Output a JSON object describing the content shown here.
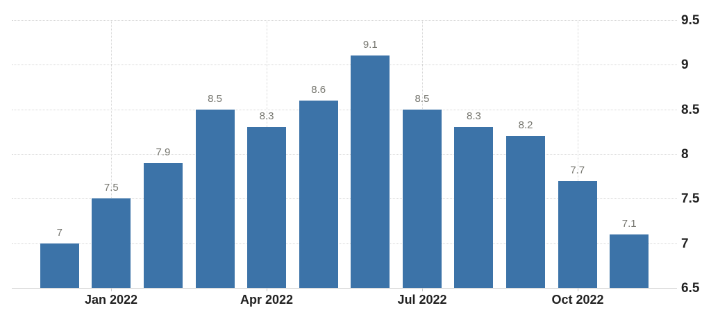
{
  "chart_data": {
    "type": "bar",
    "title": "",
    "xlabel": "",
    "ylabel": "",
    "values": [
      7,
      7.5,
      7.9,
      8.5,
      8.3,
      8.6,
      9.1,
      8.5,
      8.3,
      8.2,
      7.7,
      7.1
    ],
    "value_labels": [
      "7",
      "7.5",
      "7.9",
      "8.5",
      "8.3",
      "8.6",
      "9.1",
      "8.5",
      "8.3",
      "8.2",
      "7.7",
      "7.1"
    ],
    "x_ticks": [
      {
        "label": "Jan 2022",
        "bar_index": 1
      },
      {
        "label": "Apr 2022",
        "bar_index": 4
      },
      {
        "label": "Jul 2022",
        "bar_index": 7
      },
      {
        "label": "Oct 2022",
        "bar_index": 10
      }
    ],
    "y_ticks": [
      {
        "label": "6.5",
        "value": 6.5
      },
      {
        "label": "7",
        "value": 7
      },
      {
        "label": "7.5",
        "value": 7.5
      },
      {
        "label": "8",
        "value": 8
      },
      {
        "label": "8.5",
        "value": 8.5
      },
      {
        "label": "9",
        "value": 9
      },
      {
        "label": "9.5",
        "value": 9.5
      }
    ],
    "ylim": [
      6.5,
      9.5
    ],
    "grid": true,
    "legend": false,
    "y_axis_position": "right",
    "colors": {
      "bar": "#3c73a8",
      "value_label": "#76766f",
      "axis_label": "#222222",
      "gridline": "#d6d6d6",
      "axis_line": "#cccccc",
      "background": "#ffffff"
    }
  }
}
